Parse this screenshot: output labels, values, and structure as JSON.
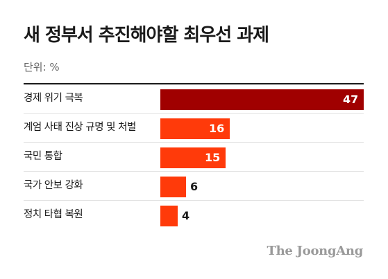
{
  "chart_data": {
    "type": "bar",
    "orientation": "horizontal",
    "title": "새 정부서 추진해야할 최우선 과제",
    "unit_label": "단위: %",
    "categories": [
      "경제 위기 극복",
      "계엄 사태 진상 규명 및 처벌",
      "국민 통합",
      "국가 안보 강화",
      "정치 타협 복원"
    ],
    "values": [
      47,
      16,
      15,
      6,
      4
    ],
    "xlim": [
      0,
      47
    ],
    "colors": {
      "highlight": "#a00000",
      "bar": "#ff3a0a"
    },
    "grid": false,
    "legend": "none"
  },
  "footer": {
    "logo": "The JoongAng"
  }
}
